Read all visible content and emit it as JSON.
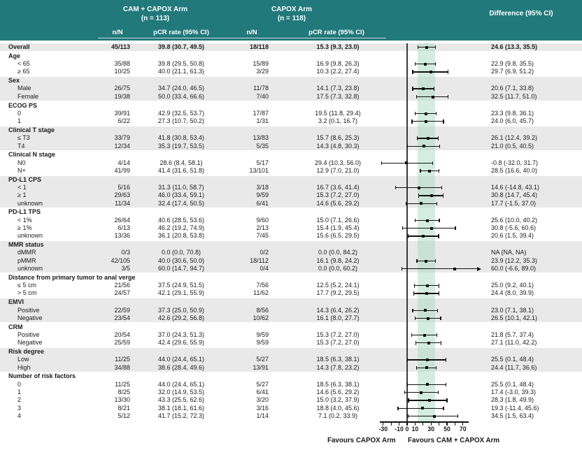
{
  "header": {
    "arm1_title": "CAM + CAPOX Arm",
    "arm1_n": "(n = 113)",
    "arm2_title": "CAPOX Arm",
    "arm2_n": "(n = 118)",
    "diff_title": "Difference (95% CI)",
    "col_nN_1": "n/N",
    "col_pcr_1": "pCR rate (95% CI)",
    "col_nN_2": "n/N",
    "col_pcr_2": "pCR rate (95% CI)"
  },
  "axis_footer": {
    "favours_left": "Favours CAPOX Arm",
    "favours_right": "Favours CAM + CAPOX Arm"
  },
  "colors": {
    "header_teal": "#22797b",
    "row_shade": "#e9e9e9",
    "band_mint": "#d7ede1",
    "marker": "#111111"
  },
  "chart_data": {
    "type": "forest",
    "x_axis": {
      "min": -30,
      "max": 70,
      "tick_values": [
        -30,
        -20,
        -10,
        0,
        10,
        20,
        30,
        40,
        50,
        60,
        70
      ],
      "tick_labels": [
        "-30",
        "",
        "-10",
        "0",
        "10",
        "",
        "30",
        "",
        "50",
        "",
        "70"
      ]
    },
    "zero_line": 0,
    "shaded_band": [
      13.3,
      35.5
    ],
    "groups": [
      {
        "label": "",
        "is_overall": true,
        "shaded": true,
        "rows": [
          {
            "label": "Overall",
            "n1": "45/113",
            "rate1": "39.8 (30.7, 49.5)",
            "n2": "18/118",
            "rate2": "15.3 (9.3, 23.0)",
            "diff": "24.6 (13.3, 35.5)",
            "est": 24.6,
            "lo": 13.3,
            "hi": 35.5
          }
        ]
      },
      {
        "label": "Age",
        "shaded": false,
        "rows": [
          {
            "label": "< 65",
            "n1": "35/88",
            "rate1": "39.8 (29.5, 50.8)",
            "n2": "15/89",
            "rate2": "16.9 (9.8, 26.3)",
            "diff": "22.9 (9.8, 35.5)",
            "est": 22.9,
            "lo": 9.8,
            "hi": 35.5
          },
          {
            "label": "≥ 65",
            "n1": "10/25",
            "rate1": "40.0 (21.1, 61.3)",
            "n2": "3/29",
            "rate2": "10.3 (2.2, 27.4)",
            "diff": "29.7 (6.9, 51.2)",
            "est": 29.7,
            "lo": 6.9,
            "hi": 51.2
          }
        ]
      },
      {
        "label": "Sex",
        "shaded": true,
        "rows": [
          {
            "label": "Male",
            "n1": "26/75",
            "rate1": "34.7 (24.0, 46.5)",
            "n2": "11/78",
            "rate2": "14.1 (7.3, 23.8)",
            "diff": "20.6 (7.1, 33.8)",
            "est": 20.6,
            "lo": 7.1,
            "hi": 33.8
          },
          {
            "label": "Female",
            "n1": "19/38",
            "rate1": "50.0 (33.4, 66.6)",
            "n2": "7/40",
            "rate2": "17.5 (7.3, 32.8)",
            "diff": "32.5 (11.7, 51.0)",
            "est": 32.5,
            "lo": 11.7,
            "hi": 51.0
          }
        ]
      },
      {
        "label": "ECOG PS",
        "shaded": false,
        "rows": [
          {
            "label": "0",
            "n1": "39/91",
            "rate1": "42.9 (32.5, 53.7)",
            "n2": "17/87",
            "rate2": "19.5 (11.8, 29.4)",
            "diff": "23.3 (9.8, 36.1)",
            "est": 23.3,
            "lo": 9.8,
            "hi": 36.1
          },
          {
            "label": "1",
            "n1": "6/22",
            "rate1": "27.3 (10.7, 50.2)",
            "n2": "1/31",
            "rate2": "3.2 (0.1, 16.7)",
            "diff": "24.0 (6.0, 45.7)",
            "est": 24.0,
            "lo": 6.0,
            "hi": 45.7
          }
        ]
      },
      {
        "label": "Clinical T stage",
        "shaded": true,
        "rows": [
          {
            "label": "≤ T3",
            "n1": "33/79",
            "rate1": "41.8 (30.8, 53.4)",
            "n2": "13/83",
            "rate2": "15.7 (8.6, 25.3)",
            "diff": "26.1 (12.4, 39.2)",
            "est": 26.1,
            "lo": 12.4,
            "hi": 39.2
          },
          {
            "label": "T4",
            "n1": "12/34",
            "rate1": "35.3 (19.7, 53.5)",
            "n2": "5/35",
            "rate2": "14.3 (4.8, 30.3)",
            "diff": "21.0 (0.5, 40.5)",
            "est": 21.0,
            "lo": 0.5,
            "hi": 40.5
          }
        ]
      },
      {
        "label": "Clinical N stage",
        "shaded": false,
        "rows": [
          {
            "label": "N0",
            "n1": "4/14",
            "rate1": "28.6 (8.4, 58.1)",
            "n2": "5/17",
            "rate2": "29.4 (10.3, 56.0)",
            "diff": "-0.8 (-32.0, 31.7)",
            "est": -0.8,
            "lo": -32.0,
            "hi": 31.7
          },
          {
            "label": "N+",
            "n1": "41/99",
            "rate1": "41.4 (31.6, 51.8)",
            "n2": "13/101",
            "rate2": "12.9 (7.0, 21.0)",
            "diff": "28.5 (16.6, 40.0)",
            "est": 28.5,
            "lo": 16.6,
            "hi": 40.0
          }
        ]
      },
      {
        "label": "PD-L1 CPS",
        "shaded": true,
        "rows": [
          {
            "label": "< 1",
            "n1": "5/16",
            "rate1": "31.3 (11.0, 58.7)",
            "n2": "3/18",
            "rate2": "16.7 (3.6, 41.4)",
            "diff": "14.6 (-14.8, 43.1)",
            "est": 14.6,
            "lo": -14.8,
            "hi": 43.1
          },
          {
            "label": "≥ 1",
            "n1": "29/63",
            "rate1": "46.0 (33.4, 59.1)",
            "n2": "9/59",
            "rate2": "15.3 (7.2, 27.0)",
            "diff": "30.8 (14.7, 45.4)",
            "est": 30.8,
            "lo": 14.7,
            "hi": 45.4
          },
          {
            "label": "unknown",
            "n1": "11/34",
            "rate1": "32.4 (17.4, 50.5)",
            "n2": "6/41",
            "rate2": "14.6 (5.6, 29.2)",
            "diff": "17.7 (-1.5, 37.0)",
            "est": 17.7,
            "lo": -1.5,
            "hi": 37.0
          }
        ]
      },
      {
        "label": "PD-L1 TPS",
        "shaded": false,
        "rows": [
          {
            "label": "< 1%",
            "n1": "26/64",
            "rate1": "40.6 (28.5, 53.6)",
            "n2": "9/60",
            "rate2": "15.0 (7.1, 26.6)",
            "diff": "25.6 (10.0, 40.2)",
            "est": 25.6,
            "lo": 10.0,
            "hi": 40.2
          },
          {
            "label": "≥ 1%",
            "n1": "6/13",
            "rate1": "46.2 (19.2, 74.9)",
            "n2": "2/13",
            "rate2": "15.4 (1.9, 45.4)",
            "diff": "30.8 (-5.6, 60.6)",
            "est": 30.8,
            "lo": -5.6,
            "hi": 60.6
          },
          {
            "label": "unknown",
            "n1": "13/36",
            "rate1": "36.1 (20.8, 53.8)",
            "n2": "7/45",
            "rate2": "15.6 (6.5, 29.5)",
            "diff": "20.6 (1.5, 39.4)",
            "est": 20.6,
            "lo": 1.5,
            "hi": 39.4
          }
        ]
      },
      {
        "label": "MMR status",
        "shaded": true,
        "rows": [
          {
            "label": "dMMR",
            "n1": "0/3",
            "rate1": "0.0 (0.0, 70.8)",
            "n2": "0/2",
            "rate2": "0.0 (0.0, 84.2)",
            "diff": "NA (NA, NA)",
            "est": null,
            "lo": null,
            "hi": null
          },
          {
            "label": "pMMR",
            "n1": "42/105",
            "rate1": "40.0 (30.6, 50.0)",
            "n2": "18/112",
            "rate2": "16.1 (9.8, 24.2)",
            "diff": "23.9 (12.2, 35.3)",
            "est": 23.9,
            "lo": 12.2,
            "hi": 35.3
          },
          {
            "label": "unknown",
            "n1": "3/5",
            "rate1": "60.0 (14.7, 94.7)",
            "n2": "0/4",
            "rate2": "0.0 (0.0, 60.2)",
            "diff": "60.0 (-6.6, 89.0)",
            "est": 60.0,
            "lo": -6.6,
            "hi": 89.0,
            "arrow_hi": true
          }
        ]
      },
      {
        "label": "Distance from primary tumor to anal verge",
        "shaded": false,
        "rows": [
          {
            "label": "≤ 5 cm",
            "n1": "21/56",
            "rate1": "37.5 (24.9, 51.5)",
            "n2": "7/56",
            "rate2": "12.5 (5.2, 24.1)",
            "diff": "25.0 (9.2, 40.1)",
            "est": 25.0,
            "lo": 9.2,
            "hi": 40.1
          },
          {
            "label": "> 5 cm",
            "n1": "24/57",
            "rate1": "42.1 (29.1, 55.9)",
            "n2": "11/62",
            "rate2": "17.7 (9.2, 29.5)",
            "diff": "24.4 (8.0, 39.9)",
            "est": 24.4,
            "lo": 8.0,
            "hi": 39.9
          }
        ]
      },
      {
        "label": "EMVI",
        "shaded": true,
        "rows": [
          {
            "label": "Positive",
            "n1": "22/59",
            "rate1": "37.3 (25.0, 50.9)",
            "n2": "8/56",
            "rate2": "14.3 (6.4, 26.2)",
            "diff": "23.0 (7.1, 38.1)",
            "est": 23.0,
            "lo": 7.1,
            "hi": 38.1
          },
          {
            "label": "Negative",
            "n1": "23/54",
            "rate1": "42.6 (29.2, 56.8)",
            "n2": "10/62",
            "rate2": "16.1 (8.0, 27.7)",
            "diff": "26.5 (10.1, 42.1)",
            "est": 26.5,
            "lo": 10.1,
            "hi": 42.1
          }
        ]
      },
      {
        "label": "CRM",
        "shaded": false,
        "rows": [
          {
            "label": "Positive",
            "n1": "20/54",
            "rate1": "37.0 (24.3, 51.3)",
            "n2": "9/59",
            "rate2": "15.3 (7.2, 27.0)",
            "diff": "21.8 (5.7, 37.4)",
            "est": 21.8,
            "lo": 5.7,
            "hi": 37.4
          },
          {
            "label": "Negative",
            "n1": "25/59",
            "rate1": "42.4 (29.6, 55.9)",
            "n2": "9/59",
            "rate2": "15.3 (7.2, 27.0)",
            "diff": "27.1 (11.0, 42.2)",
            "est": 27.1,
            "lo": 11.0,
            "hi": 42.2
          }
        ]
      },
      {
        "label": "Risk degree",
        "shaded": true,
        "rows": [
          {
            "label": "Low",
            "n1": "11/25",
            "rate1": "44.0 (24.4, 65.1)",
            "n2": "5/27",
            "rate2": "18.5 (6.3, 38.1)",
            "diff": "25.5 (0.1, 48.4)",
            "est": 25.5,
            "lo": 0.1,
            "hi": 48.4
          },
          {
            "label": "High",
            "n1": "34/88",
            "rate1": "38.6 (28.4, 49.6)",
            "n2": "13/91",
            "rate2": "14.3 (7.8, 23.2)",
            "diff": "24.4 (11.7, 36.6)",
            "est": 24.4,
            "lo": 11.7,
            "hi": 36.6
          }
        ]
      },
      {
        "label": "Number of risk factors",
        "shaded": false,
        "rows": [
          {
            "label": "0",
            "n1": "11/25",
            "rate1": "44.0 (24.4, 65.1)",
            "n2": "5/27",
            "rate2": "18.5 (6.3, 38.1)",
            "diff": "25.5 (0.1, 48.4)",
            "est": 25.5,
            "lo": 0.1,
            "hi": 48.4
          },
          {
            "label": "1",
            "n1": "8/25",
            "rate1": "32.0 (14.9, 53.5)",
            "n2": "6/41",
            "rate2": "14.6 (5.6, 29.2)",
            "diff": "17.4 (-3.0, 39.3)",
            "est": 17.4,
            "lo": -3.0,
            "hi": 39.3
          },
          {
            "label": "2",
            "n1": "13/30",
            "rate1": "43.3 (25.5, 62.6)",
            "n2": "3/20",
            "rate2": "15.0 (3.2, 37.9)",
            "diff": "28.3 (1.8, 49.9)",
            "est": 28.3,
            "lo": 1.8,
            "hi": 49.9
          },
          {
            "label": "3",
            "n1": "8/21",
            "rate1": "38.1 (18.1, 61.6)",
            "n2": "3/16",
            "rate2": "18.8 (4.0, 45.6)",
            "diff": "19.3 (-11.4, 45.6)",
            "est": 19.3,
            "lo": -11.4,
            "hi": 45.6
          },
          {
            "label": "4",
            "n1": "5/12",
            "rate1": "41.7 (15.2, 72.3)",
            "n2": "1/14",
            "rate2": "7.1 (0.2, 33.9)",
            "diff": "34.5 (1.5, 63.4)",
            "est": 34.5,
            "lo": 1.5,
            "hi": 63.4
          }
        ]
      }
    ]
  }
}
